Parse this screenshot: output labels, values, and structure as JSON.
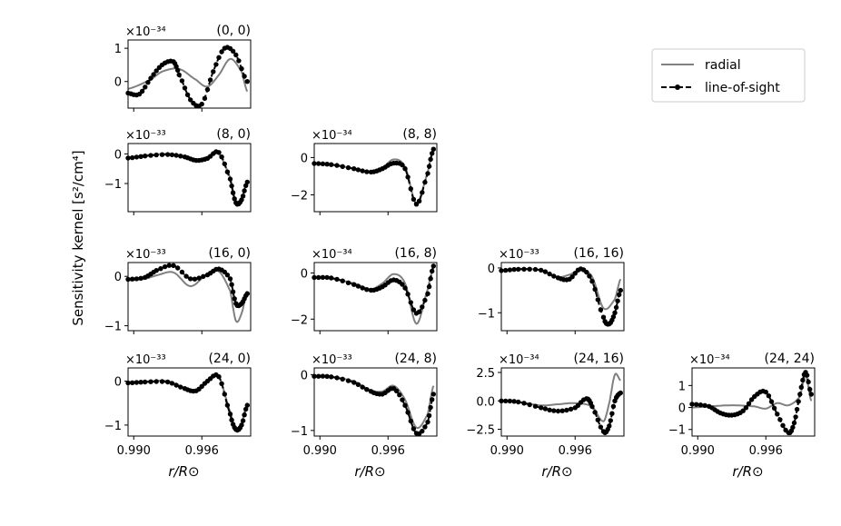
{
  "chart_data": {
    "type": "line",
    "ylabel": "Sensitivity kernel [s²/cm⁴]",
    "xlabel": "r/R⊙",
    "xlim": [
      0.9895,
      1.0003
    ],
    "xticks": [
      0.99,
      0.996
    ],
    "xtick_labels": [
      "0.990",
      "0.996"
    ],
    "legend": {
      "position": "top-right",
      "entries": [
        {
          "name": "radial",
          "style": "solid",
          "color": "#808080"
        },
        {
          "name": "line-of-sight",
          "style": "dashed-dots",
          "color": "#000000"
        }
      ]
    },
    "panels": [
      {
        "title": "(0, 0)",
        "row": 0,
        "col": 0,
        "scale_label": "×10⁻³⁴",
        "ylim": [
          -0.8,
          1.25
        ],
        "yticks": [
          0,
          1
        ],
        "ytick_labels": [
          "0",
          "1"
        ],
        "radial": {
          "x": [
            0.9895,
            0.9915,
            0.9925,
            0.994,
            0.9955,
            0.9965,
            0.9975,
            0.9985,
            0.9995,
            1.0
          ],
          "y": [
            -0.22,
            0.05,
            0.3,
            0.38,
            0.05,
            -0.15,
            0.2,
            0.68,
            0.3,
            -0.3
          ]
        },
        "los": {
          "x": [
            0.9895,
            0.9905,
            0.9915,
            0.9925,
            0.9935,
            0.994,
            0.995,
            0.996,
            0.997,
            0.998,
            0.999,
            1.0
          ],
          "y": [
            -0.35,
            -0.38,
            0.1,
            0.5,
            0.6,
            0.2,
            -0.55,
            -0.68,
            0.3,
            1.0,
            0.8,
            0.0
          ]
        }
      },
      {
        "title": "(8, 0)",
        "row": 1,
        "col": 0,
        "scale_label": "×10⁻³³",
        "ylim": [
          -1.95,
          0.35
        ],
        "yticks": [
          0,
          -1
        ],
        "ytick_labels": [
          "0",
          "−1"
        ],
        "radial": {
          "x": [
            0.9895,
            0.991,
            0.993,
            0.9945,
            0.9955,
            0.9965,
            0.9975,
            0.9985,
            0.999,
            0.9995,
            1.0
          ],
          "y": [
            -0.12,
            -0.05,
            0.0,
            -0.08,
            -0.2,
            -0.1,
            0.0,
            -0.8,
            -1.6,
            -1.5,
            -0.9
          ]
        },
        "los": {
          "x": [
            0.9895,
            0.991,
            0.993,
            0.9945,
            0.9955,
            0.9965,
            0.9975,
            0.9985,
            0.999,
            0.9995,
            1.0
          ],
          "y": [
            -0.14,
            -0.07,
            -0.02,
            -0.1,
            -0.22,
            -0.15,
            0.05,
            -0.85,
            -1.65,
            -1.55,
            -0.95
          ]
        }
      },
      {
        "title": "(8, 8)",
        "row": 1,
        "col": 1,
        "scale_label": "×10⁻³⁴",
        "ylim": [
          -2.9,
          0.75
        ],
        "yticks": [
          0,
          -2
        ],
        "ytick_labels": [
          "0",
          "−2"
        ],
        "radial": {
          "x": [
            0.9895,
            0.991,
            0.993,
            0.9945,
            0.9955,
            0.9965,
            0.9975,
            0.9985,
            0.9995,
            1.0
          ],
          "y": [
            -0.32,
            -0.38,
            -0.58,
            -0.75,
            -0.55,
            -0.1,
            -0.5,
            -2.45,
            -0.8,
            0.45
          ]
        },
        "los": {
          "x": [
            0.9895,
            0.991,
            0.993,
            0.9945,
            0.9955,
            0.9965,
            0.9975,
            0.9985,
            0.9995,
            1.0
          ],
          "y": [
            -0.32,
            -0.38,
            -0.6,
            -0.78,
            -0.6,
            -0.3,
            -0.6,
            -2.5,
            -0.85,
            0.45
          ]
        }
      },
      {
        "title": "(16, 0)",
        "row": 2,
        "col": 0,
        "scale_label": "×10⁻³³",
        "ylim": [
          -1.1,
          0.28
        ],
        "yticks": [
          0,
          -1
        ],
        "ytick_labels": [
          "0",
          "−1"
        ],
        "radial": {
          "x": [
            0.9895,
            0.991,
            0.992,
            0.9935,
            0.995,
            0.9965,
            0.9975,
            0.9985,
            0.999,
            0.9995,
            1.0
          ],
          "y": [
            -0.08,
            -0.05,
            0.02,
            0.08,
            -0.2,
            0.05,
            0.1,
            -0.3,
            -0.9,
            -0.75,
            -0.3
          ]
        },
        "los": {
          "x": [
            0.9895,
            0.991,
            0.992,
            0.9935,
            0.995,
            0.9965,
            0.9975,
            0.9985,
            0.999,
            0.9995,
            1.0
          ],
          "y": [
            -0.06,
            -0.02,
            0.12,
            0.22,
            -0.05,
            0.03,
            0.15,
            -0.05,
            -0.55,
            -0.55,
            -0.35
          ]
        }
      },
      {
        "title": "(16, 8)",
        "row": 2,
        "col": 1,
        "scale_label": "×10⁻³⁴",
        "ylim": [
          -2.5,
          0.45
        ],
        "yticks": [
          0,
          -2
        ],
        "ytick_labels": [
          "0",
          "−2"
        ],
        "radial": {
          "x": [
            0.9895,
            0.991,
            0.993,
            0.9945,
            0.9955,
            0.9965,
            0.9975,
            0.9985,
            0.9995,
            1.0
          ],
          "y": [
            -0.2,
            -0.25,
            -0.45,
            -0.7,
            -0.45,
            -0.05,
            -0.45,
            -2.2,
            -0.7,
            0.2
          ]
        },
        "los": {
          "x": [
            0.9895,
            0.991,
            0.993,
            0.9945,
            0.9955,
            0.9965,
            0.9975,
            0.9985,
            0.9995,
            1.0
          ],
          "y": [
            -0.2,
            -0.22,
            -0.5,
            -0.75,
            -0.6,
            -0.3,
            -0.65,
            -1.75,
            -0.9,
            0.3
          ]
        }
      },
      {
        "title": "(16, 16)",
        "row": 2,
        "col": 2,
        "scale_label": "×10⁻³³",
        "ylim": [
          -1.4,
          0.12
        ],
        "yticks": [
          0,
          -1
        ],
        "ytick_labels": [
          "0",
          "−1"
        ],
        "radial": {
          "x": [
            0.9895,
            0.991,
            0.993,
            0.9945,
            0.9955,
            0.9965,
            0.9975,
            0.9985,
            0.9995,
            1.0
          ],
          "y": [
            -0.06,
            -0.02,
            -0.05,
            -0.2,
            -0.15,
            -0.05,
            -0.2,
            -0.9,
            -0.7,
            -0.25
          ]
        },
        "los": {
          "x": [
            0.9895,
            0.991,
            0.993,
            0.9945,
            0.9955,
            0.9965,
            0.9975,
            0.9985,
            0.999,
            0.9995,
            1.0
          ],
          "y": [
            -0.06,
            -0.03,
            -0.05,
            -0.22,
            -0.25,
            -0.02,
            -0.3,
            -1.1,
            -1.25,
            -1.0,
            -0.5
          ]
        }
      },
      {
        "title": "(24, 0)",
        "row": 3,
        "col": 0,
        "scale_label": "×10⁻³³",
        "ylim": [
          -1.25,
          0.3
        ],
        "yticks": [
          0,
          -1
        ],
        "ytick_labels": [
          "0",
          "−1"
        ],
        "radial": {
          "x": [
            0.9895,
            0.991,
            0.993,
            0.9945,
            0.9955,
            0.9965,
            0.9975,
            0.9985,
            0.999,
            0.9995,
            1.0
          ],
          "y": [
            -0.03,
            -0.01,
            0.0,
            -0.15,
            -0.2,
            0.0,
            0.1,
            -0.7,
            -1.05,
            -0.95,
            -0.5
          ]
        },
        "los": {
          "x": [
            0.9895,
            0.991,
            0.993,
            0.9945,
            0.9955,
            0.9965,
            0.9975,
            0.9985,
            0.999,
            0.9995,
            1.0
          ],
          "y": [
            -0.04,
            -0.02,
            -0.02,
            -0.17,
            -0.22,
            0.0,
            0.1,
            -0.75,
            -1.1,
            -1.0,
            -0.55
          ]
        }
      },
      {
        "title": "(24, 8)",
        "row": 3,
        "col": 1,
        "scale_label": "×10⁻³³",
        "ylim": [
          -1.1,
          0.12
        ],
        "yticks": [
          0,
          -1
        ],
        "ytick_labels": [
          "0",
          "−1"
        ],
        "radial": {
          "x": [
            0.9895,
            0.991,
            0.993,
            0.9945,
            0.9955,
            0.9965,
            0.9975,
            0.9985,
            0.9995,
            1.0
          ],
          "y": [
            -0.03,
            -0.04,
            -0.12,
            -0.28,
            -0.3,
            -0.2,
            -0.45,
            -0.95,
            -0.7,
            -0.2
          ]
        },
        "los": {
          "x": [
            0.9895,
            0.991,
            0.993,
            0.9945,
            0.9955,
            0.9965,
            0.9975,
            0.9985,
            0.9995,
            1.0
          ],
          "y": [
            -0.03,
            -0.04,
            -0.14,
            -0.3,
            -0.35,
            -0.25,
            -0.55,
            -1.05,
            -0.85,
            -0.35
          ]
        }
      },
      {
        "title": "(24, 16)",
        "row": 3,
        "col": 2,
        "scale_label": "×10⁻³⁴",
        "ylim": [
          -3.1,
          2.9
        ],
        "yticks": [
          2.5,
          0.0,
          -2.5
        ],
        "ytick_labels": [
          "2.5",
          "0.0",
          "−2.5"
        ],
        "radial": {
          "x": [
            0.9895,
            0.991,
            0.993,
            0.9945,
            0.996,
            0.9975,
            0.9985,
            0.999,
            0.9995,
            1.0
          ],
          "y": [
            0.0,
            -0.1,
            -0.4,
            -0.3,
            -0.2,
            -0.5,
            -1.8,
            -0.2,
            2.3,
            1.8
          ]
        },
        "los": {
          "x": [
            0.9895,
            0.991,
            0.993,
            0.9945,
            0.996,
            0.997,
            0.9975,
            0.9985,
            0.999,
            0.9995,
            1.0
          ],
          "y": [
            0.0,
            -0.1,
            -0.6,
            -0.9,
            -0.6,
            0.2,
            -0.5,
            -2.7,
            -2.2,
            0.0,
            0.7
          ]
        }
      },
      {
        "title": "(24, 24)",
        "row": 3,
        "col": 3,
        "scale_label": "×10⁻³⁴",
        "ylim": [
          -1.3,
          1.8
        ],
        "yticks": [
          1,
          0,
          -1
        ],
        "ytick_labels": [
          "1",
          "0",
          "−1"
        ],
        "radial": {
          "x": [
            0.9895,
            0.991,
            0.993,
            0.995,
            0.996,
            0.997,
            0.998,
            0.999,
            0.9995,
            1.0
          ],
          "y": [
            0.0,
            0.05,
            0.1,
            0.05,
            -0.05,
            0.2,
            0.1,
            0.5,
            1.45,
            0.3
          ]
        },
        "los": {
          "x": [
            0.9895,
            0.991,
            0.992,
            0.993,
            0.994,
            0.995,
            0.996,
            0.997,
            0.998,
            0.9985,
            0.999,
            0.9995,
            1.0
          ],
          "y": [
            0.15,
            0.05,
            -0.25,
            -0.35,
            -0.15,
            0.5,
            0.7,
            -0.3,
            -1.15,
            -0.7,
            0.6,
            1.6,
            0.6
          ]
        }
      }
    ]
  }
}
